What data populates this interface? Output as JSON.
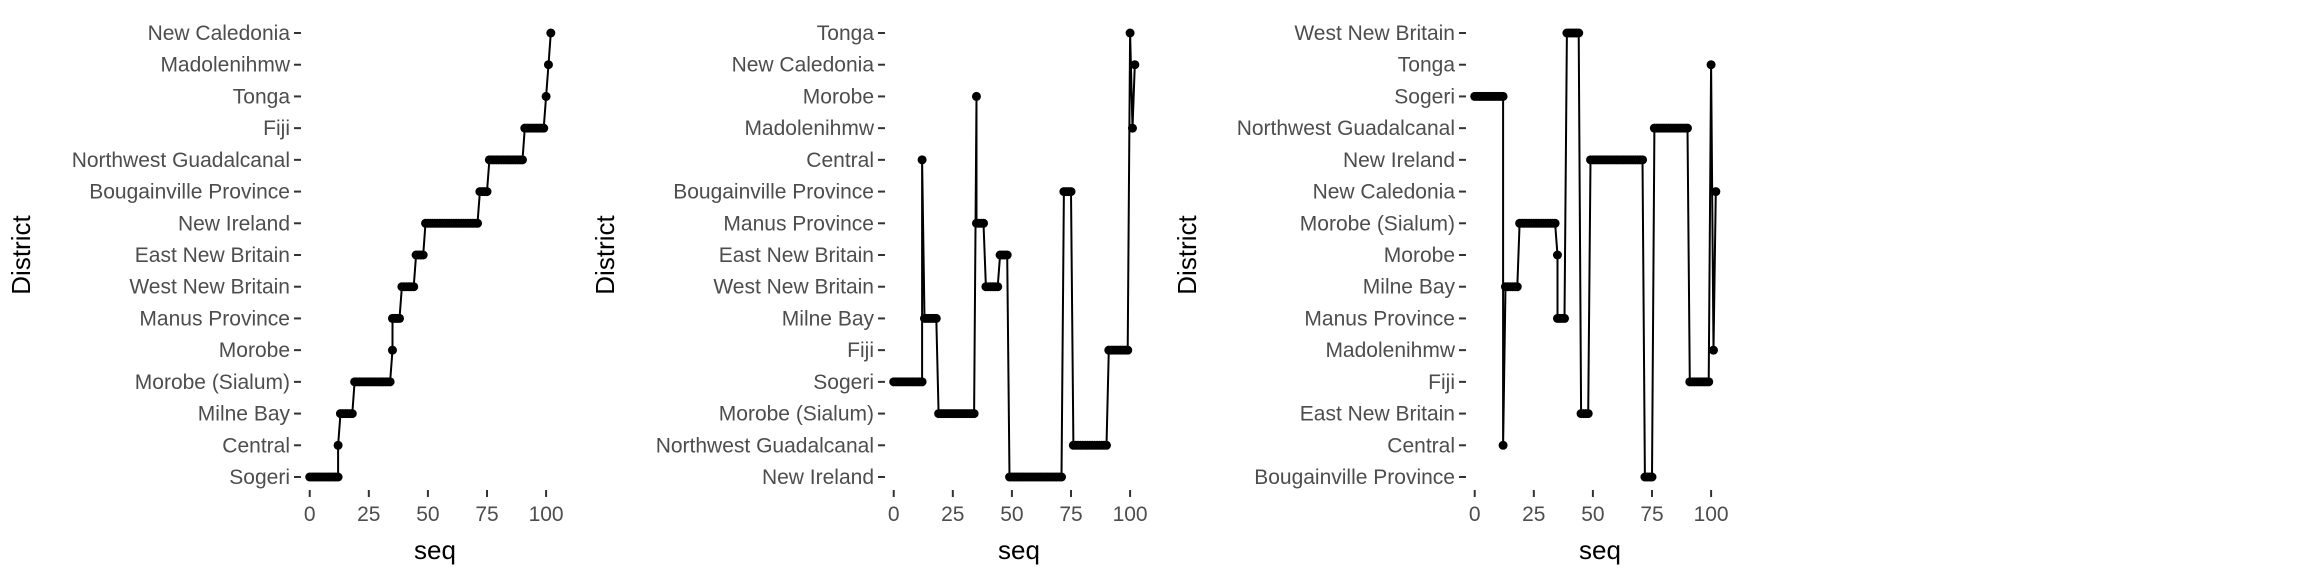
{
  "chart_data": [
    {
      "type": "line",
      "xlabel": "seq",
      "ylabel": "District",
      "xlim": [
        -2,
        108
      ],
      "x_ticks": [
        "0",
        "25",
        "50",
        "75",
        "100"
      ],
      "x_tick_values": [
        0,
        25,
        50,
        75,
        100
      ],
      "categories": [
        "Sogeri",
        "Central",
        "Milne Bay",
        "Morobe (Sialum)",
        "Morobe",
        "Manus Province",
        "West New Britain",
        "East New Britain",
        "New Ireland",
        "Bougainville Province",
        "Northwest Guadalcanal",
        "Fiji",
        "Tonga",
        "Madolenihmw",
        "New Caledonia"
      ],
      "series": [
        {
          "x": [
            0,
            12,
            12,
            13,
            18,
            19,
            34,
            35,
            35,
            36,
            38,
            39,
            44,
            45,
            48,
            49,
            71,
            72,
            75,
            76,
            90,
            91,
            99,
            100,
            101,
            102
          ],
          "y": [
            "Sogeri",
            "Sogeri",
            "Central",
            "Milne Bay",
            "Milne Bay",
            "Morobe (Sialum)",
            "Morobe (Sialum)",
            "Morobe",
            "Manus Province",
            "Manus Province",
            "Manus Province",
            "West New Britain",
            "West New Britain",
            "East New Britain",
            "East New Britain",
            "New Ireland",
            "New Ireland",
            "Bougainville Province",
            "Bougainville Province",
            "Northwest Guadalcanal",
            "Northwest Guadalcanal",
            "Fiji",
            "Fiji",
            "Tonga",
            "Madolenihmw",
            "New Caledonia"
          ]
        }
      ]
    },
    {
      "type": "line",
      "xlabel": "seq",
      "ylabel": "District",
      "xlim": [
        -2,
        108
      ],
      "x_ticks": [
        "0",
        "25",
        "50",
        "75",
        "100"
      ],
      "x_tick_values": [
        0,
        25,
        50,
        75,
        100
      ],
      "categories": [
        "New Ireland",
        "Northwest Guadalcanal",
        "Morobe (Sialum)",
        "Sogeri",
        "Fiji",
        "Milne Bay",
        "West New Britain",
        "East New Britain",
        "Manus Province",
        "Bougainville Province",
        "Central",
        "Madolenihmw",
        "Morobe",
        "New Caledonia",
        "Tonga"
      ],
      "series": [
        {
          "x": [
            0,
            12,
            12,
            13,
            18,
            19,
            34,
            35,
            35,
            36,
            38,
            39,
            44,
            45,
            48,
            49,
            71,
            72,
            75,
            76,
            90,
            91,
            99,
            100,
            101,
            102
          ],
          "y": [
            "Sogeri",
            "Sogeri",
            "Central",
            "Milne Bay",
            "Milne Bay",
            "Morobe (Sialum)",
            "Morobe (Sialum)",
            "Morobe",
            "Manus Province",
            "Manus Province",
            "Manus Province",
            "West New Britain",
            "West New Britain",
            "East New Britain",
            "East New Britain",
            "New Ireland",
            "New Ireland",
            "Bougainville Province",
            "Bougainville Province",
            "Northwest Guadalcanal",
            "Northwest Guadalcanal",
            "Fiji",
            "Fiji",
            "Tonga",
            "Madolenihmw",
            "New Caledonia"
          ]
        }
      ]
    },
    {
      "type": "line",
      "xlabel": "seq",
      "ylabel": "District",
      "xlim": [
        -2,
        108
      ],
      "x_ticks": [
        "0",
        "25",
        "50",
        "75",
        "100"
      ],
      "x_tick_values": [
        0,
        25,
        50,
        75,
        100
      ],
      "categories": [
        "Bougainville Province",
        "Central",
        "East New Britain",
        "Fiji",
        "Madolenihmw",
        "Manus Province",
        "Milne Bay",
        "Morobe",
        "Morobe (Sialum)",
        "New Caledonia",
        "New Ireland",
        "Northwest Guadalcanal",
        "Sogeri",
        "Tonga",
        "West New Britain"
      ],
      "series": [
        {
          "x": [
            0,
            12,
            12,
            13,
            18,
            19,
            34,
            35,
            35,
            36,
            38,
            39,
            44,
            45,
            48,
            49,
            71,
            72,
            75,
            76,
            90,
            91,
            99,
            100,
            101,
            102
          ],
          "y": [
            "Sogeri",
            "Sogeri",
            "Central",
            "Milne Bay",
            "Milne Bay",
            "Morobe (Sialum)",
            "Morobe (Sialum)",
            "Morobe",
            "Manus Province",
            "Manus Province",
            "Manus Province",
            "West New Britain",
            "West New Britain",
            "East New Britain",
            "East New Britain",
            "New Ireland",
            "New Ireland",
            "Bougainville Province",
            "Bougainville Province",
            "Northwest Guadalcanal",
            "Northwest Guadalcanal",
            "Fiji",
            "Fiji",
            "Tonga",
            "Madolenihmw",
            "New Caledonia"
          ]
        }
      ]
    }
  ]
}
